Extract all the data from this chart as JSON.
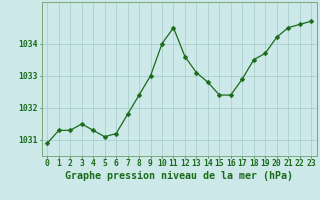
{
  "hours": [
    0,
    1,
    2,
    3,
    4,
    5,
    6,
    7,
    8,
    9,
    10,
    11,
    12,
    13,
    14,
    15,
    16,
    17,
    18,
    19,
    20,
    21,
    22,
    23
  ],
  "pressure": [
    1030.9,
    1031.3,
    1031.3,
    1031.5,
    1031.3,
    1031.1,
    1031.2,
    1031.8,
    1032.4,
    1033.0,
    1034.0,
    1034.5,
    1033.6,
    1033.1,
    1032.8,
    1032.4,
    1032.4,
    1032.9,
    1033.5,
    1033.7,
    1034.2,
    1034.5,
    1034.6,
    1034.7
  ],
  "line_color": "#1a6b1a",
  "marker": "D",
  "marker_size": 2.5,
  "bg_color": "#cce8e8",
  "grid_color": "#aacfcf",
  "ylabel_ticks": [
    1031,
    1032,
    1033,
    1034
  ],
  "ylim": [
    1030.5,
    1035.3
  ],
  "xlim": [
    -0.5,
    23.5
  ],
  "xlabel": "Graphe pression niveau de la mer (hPa)",
  "xlabel_color": "#1a6b1a",
  "tick_color": "#1a6b1a",
  "axis_color": "#7aaa7a",
  "tick_fontsize": 5.8,
  "xlabel_fontsize": 7.2
}
